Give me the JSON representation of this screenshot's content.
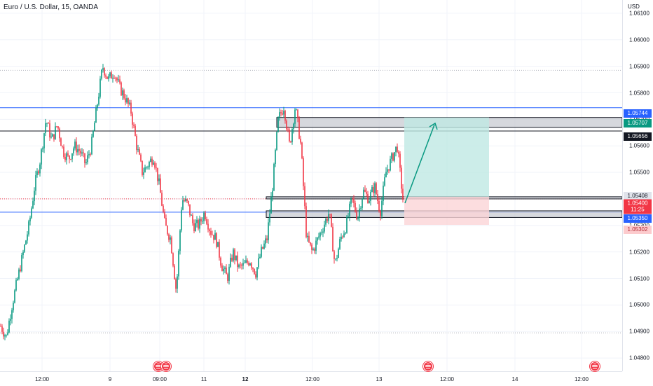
{
  "header": {
    "symbol_title": "Euro / U.S. Dollar, 15, OANDA",
    "currency": "USD"
  },
  "colors": {
    "up": "#089981",
    "down": "#f23645",
    "blue_line": "#2962ff",
    "zone_fill": "#c8cbd2",
    "target_fill": "#bfe9e3",
    "stop_fill": "#fbd5d7",
    "grid": "#f0f3fa"
  },
  "price_axis": {
    "ticks": [
      "1.06100",
      "1.06000",
      "1.05900",
      "1.05800",
      "1.05700",
      "1.05600",
      "1.05500",
      "1.05400",
      "1.05300",
      "1.05200",
      "1.05100",
      "1.05000",
      "1.04900",
      "1.04800"
    ]
  },
  "time_axis": {
    "ticks": [
      {
        "label": "12:00",
        "bold": false
      },
      {
        "label": "9",
        "bold": false
      },
      {
        "label": "09:00",
        "bold": false
      },
      {
        "label": "11",
        "bold": false
      },
      {
        "label": "12",
        "bold": true
      },
      {
        "label": "12:00",
        "bold": false
      },
      {
        "label": "13",
        "bold": false
      },
      {
        "label": "12:00",
        "bold": false
      },
      {
        "label": "14",
        "bold": false
      },
      {
        "label": "12:00",
        "bold": false
      }
    ]
  },
  "price_labels": {
    "level_1": "1.05744",
    "target": "1.05707",
    "level_2": "1.05656",
    "entry_zone": "1.05408",
    "current_price": "1.05400",
    "countdown": "11:25",
    "level_3": "1.05350",
    "stop": "1.05302"
  },
  "events": [
    "us-flag-icon",
    "us-flag-icon",
    "us-flag-icon",
    "us-flag-icon"
  ],
  "chart_data": {
    "type": "candlestick",
    "y_range": [
      1.0475,
      1.0615
    ],
    "horizontal_levels": [
      1.05744,
      1.05656,
      1.0535,
      1.054,
      1.05885,
      1.04895
    ],
    "zones": [
      {
        "from": 1.0567,
        "to": 1.05707
      },
      {
        "from": 1.054,
        "to": 1.05408
      },
      {
        "from": 1.0533,
        "to": 1.05355
      }
    ],
    "position": {
      "entry": 1.05408,
      "target": 1.05707,
      "stop": 1.05302
    },
    "close_path": [
      1.0492,
      1.0488,
      1.05,
      1.051,
      1.052,
      1.053,
      1.0545,
      1.0555,
      1.057,
      1.0562,
      1.0568,
      1.0558,
      1.0555,
      1.056,
      1.0558,
      1.0553,
      1.056,
      1.0575,
      1.059,
      1.0585,
      1.0588,
      1.0582,
      1.0578,
      1.0573,
      1.056,
      1.055,
      1.0553,
      1.0556,
      1.0545,
      1.053,
      1.0525,
      1.0505,
      1.054,
      1.0538,
      1.053,
      1.053,
      1.0535,
      1.0528,
      1.0525,
      1.0515,
      1.051,
      1.052,
      1.0514,
      1.0515,
      1.0517,
      1.0512,
      1.052,
      1.0525,
      1.0545,
      1.057,
      1.0575,
      1.056,
      1.0575,
      1.056,
      1.0525,
      1.052,
      1.0525,
      1.053,
      1.0535,
      1.0515,
      1.0525,
      1.053,
      1.054,
      1.0533,
      1.0543,
      1.054,
      1.0545,
      1.0535,
      1.055,
      1.0555,
      1.056,
      1.054
    ],
    "candle_count": 288
  }
}
